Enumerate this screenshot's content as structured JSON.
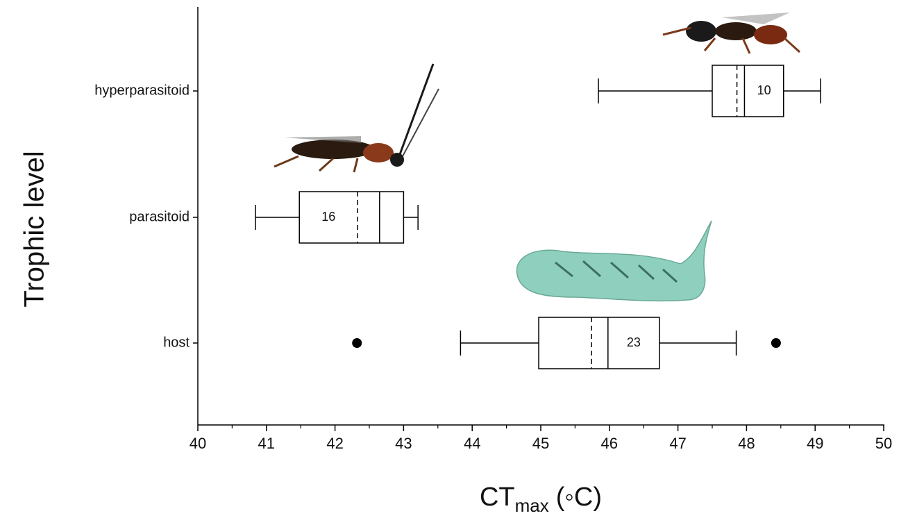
{
  "chart_data": {
    "type": "boxplot",
    "y_label": "Trophic level",
    "x_label": {
      "main": "CT",
      "sub": "max",
      "unit": "(◦C)"
    },
    "categories": [
      "host",
      "parasitoid",
      "hyperparasitoid"
    ],
    "boxes": [
      {
        "whislo": 43.83,
        "q1": 44.97,
        "mean": 45.74,
        "median": 45.98,
        "q3": 46.73,
        "whishi": 47.85,
        "outliers": [
          42.32,
          48.43
        ],
        "n": 23
      },
      {
        "whislo": 40.84,
        "q1": 41.48,
        "mean": 42.33,
        "median": 42.65,
        "q3": 43.0,
        "whishi": 43.21,
        "outliers": [],
        "n": 16
      },
      {
        "whislo": 45.84,
        "q1": 47.5,
        "mean": 47.86,
        "median": 47.97,
        "q3": 48.54,
        "whishi": 49.08,
        "outliers": [],
        "n": 10
      }
    ],
    "color": "#000000",
    "xlim": [
      40,
      50
    ],
    "xticks": [
      40,
      41,
      42,
      43,
      44,
      45,
      46,
      47,
      48,
      49,
      50
    ],
    "xminorticks": [
      40.5,
      41.5,
      42.5,
      43.5,
      44.5,
      45.5,
      46.5,
      47.5,
      48.5,
      49.5
    ]
  }
}
